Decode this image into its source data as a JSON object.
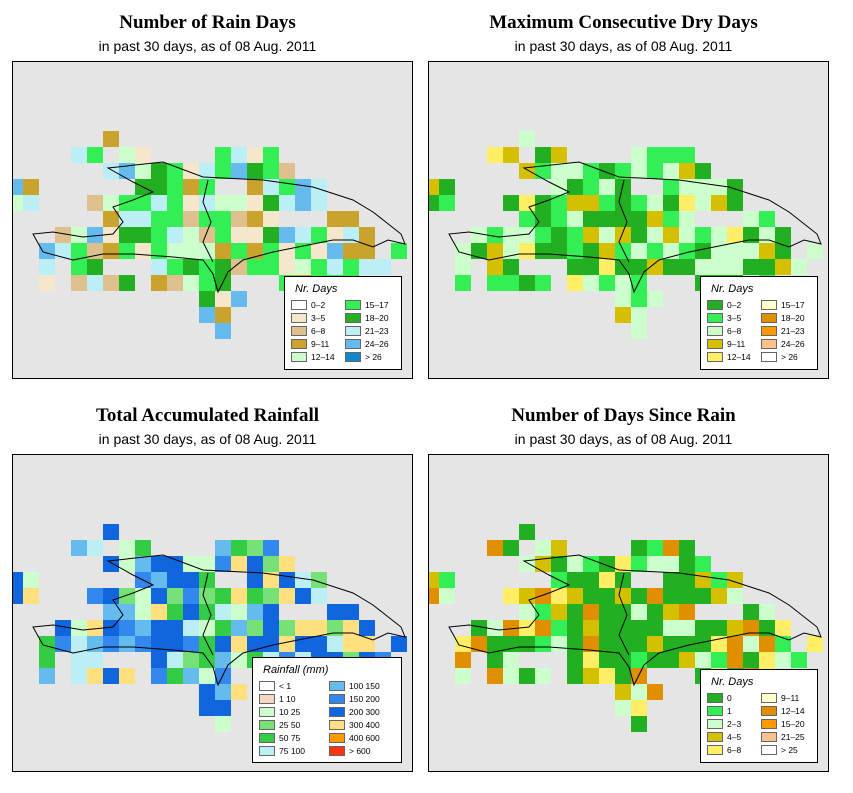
{
  "panels": [
    {
      "id": "rain-days",
      "title": "Number of Rain Days",
      "subtitle": "in past 30 days, as of  08 Aug. 2011",
      "legend": {
        "title": "Nr. Days",
        "items": [
          {
            "label": "0–2",
            "color": "#ffffff"
          },
          {
            "label": "15–17",
            "color": "#33ee55"
          },
          {
            "label": "3–5",
            "color": "#f5e6cc"
          },
          {
            "label": "18–20",
            "color": "#22b022"
          },
          {
            "label": "6–8",
            "color": "#ddc08e"
          },
          {
            "label": "21–23",
            "color": "#bbeef5"
          },
          {
            "label": "9–11",
            "color": "#c9a32c"
          },
          {
            "label": "24–26",
            "color": "#66bbee"
          },
          {
            "label": "12–14",
            "color": "#ccffcc"
          },
          {
            "label": "> 26",
            "color": "#1188cc"
          }
        ]
      }
    },
    {
      "id": "dry-days",
      "title": "Maximum Consecutive Dry Days",
      "subtitle": "in past 30 days, as of  08 Aug. 2011",
      "legend": {
        "title": "Nr. Days",
        "items": [
          {
            "label": "0–2",
            "color": "#22b022"
          },
          {
            "label": "15–17",
            "color": "#ffffcc"
          },
          {
            "label": "3–5",
            "color": "#33ee55"
          },
          {
            "label": "18–20",
            "color": "#e08f00"
          },
          {
            "label": "6–8",
            "color": "#ccffcc"
          },
          {
            "label": "21–23",
            "color": "#ff9900"
          },
          {
            "label": "9–11",
            "color": "#d4c000"
          },
          {
            "label": "24–26",
            "color": "#ffc090"
          },
          {
            "label": "12–14",
            "color": "#ffee66"
          },
          {
            "label": "> 26",
            "color": "#ffffff"
          }
        ]
      }
    },
    {
      "id": "rainfall",
      "title": "Total Accumulated Rainfall",
      "subtitle": "in past 30 days, as of  08 Aug. 2011",
      "legend": {
        "title": "Rainfall (mm)",
        "items": [
          {
            "label": "< 1",
            "color": "#ffffff"
          },
          {
            "label": "100  150",
            "color": "#66bbee"
          },
          {
            "label": "1   10",
            "color": "#f5d6c0"
          },
          {
            "label": "150  200",
            "color": "#3388ee"
          },
          {
            "label": "10   25",
            "color": "#ccffcc"
          },
          {
            "label": "200  300",
            "color": "#1166dd"
          },
          {
            "label": "25   50",
            "color": "#77e077"
          },
          {
            "label": "300  400",
            "color": "#ffe080"
          },
          {
            "label": "50   75",
            "color": "#33cc44"
          },
          {
            "label": "400  600",
            "color": "#ff9900"
          },
          {
            "label": "75  100",
            "color": "#bbeef5"
          },
          {
            "label": "> 600",
            "color": "#ff3311"
          }
        ]
      }
    },
    {
      "id": "since-rain",
      "title": "Number of Days Since Rain",
      "subtitle": "in past 30 days, as of  08 Aug. 2011",
      "legend": {
        "title": "Nr. Days",
        "items": [
          {
            "label": "0",
            "color": "#22b022"
          },
          {
            "label": "9–11",
            "color": "#ffffcc"
          },
          {
            "label": "1",
            "color": "#33ee55"
          },
          {
            "label": "12–14",
            "color": "#e08f00"
          },
          {
            "label": "2–3",
            "color": "#ccffcc"
          },
          {
            "label": "15–20",
            "color": "#ff9900"
          },
          {
            "label": "4–5",
            "color": "#d4c000"
          },
          {
            "label": "21–25",
            "color": "#ffc090"
          },
          {
            "label": "6–8",
            "color": "#ffee66"
          },
          {
            "label": "> 25",
            "color": "#ffffff"
          }
        ]
      }
    }
  ]
}
